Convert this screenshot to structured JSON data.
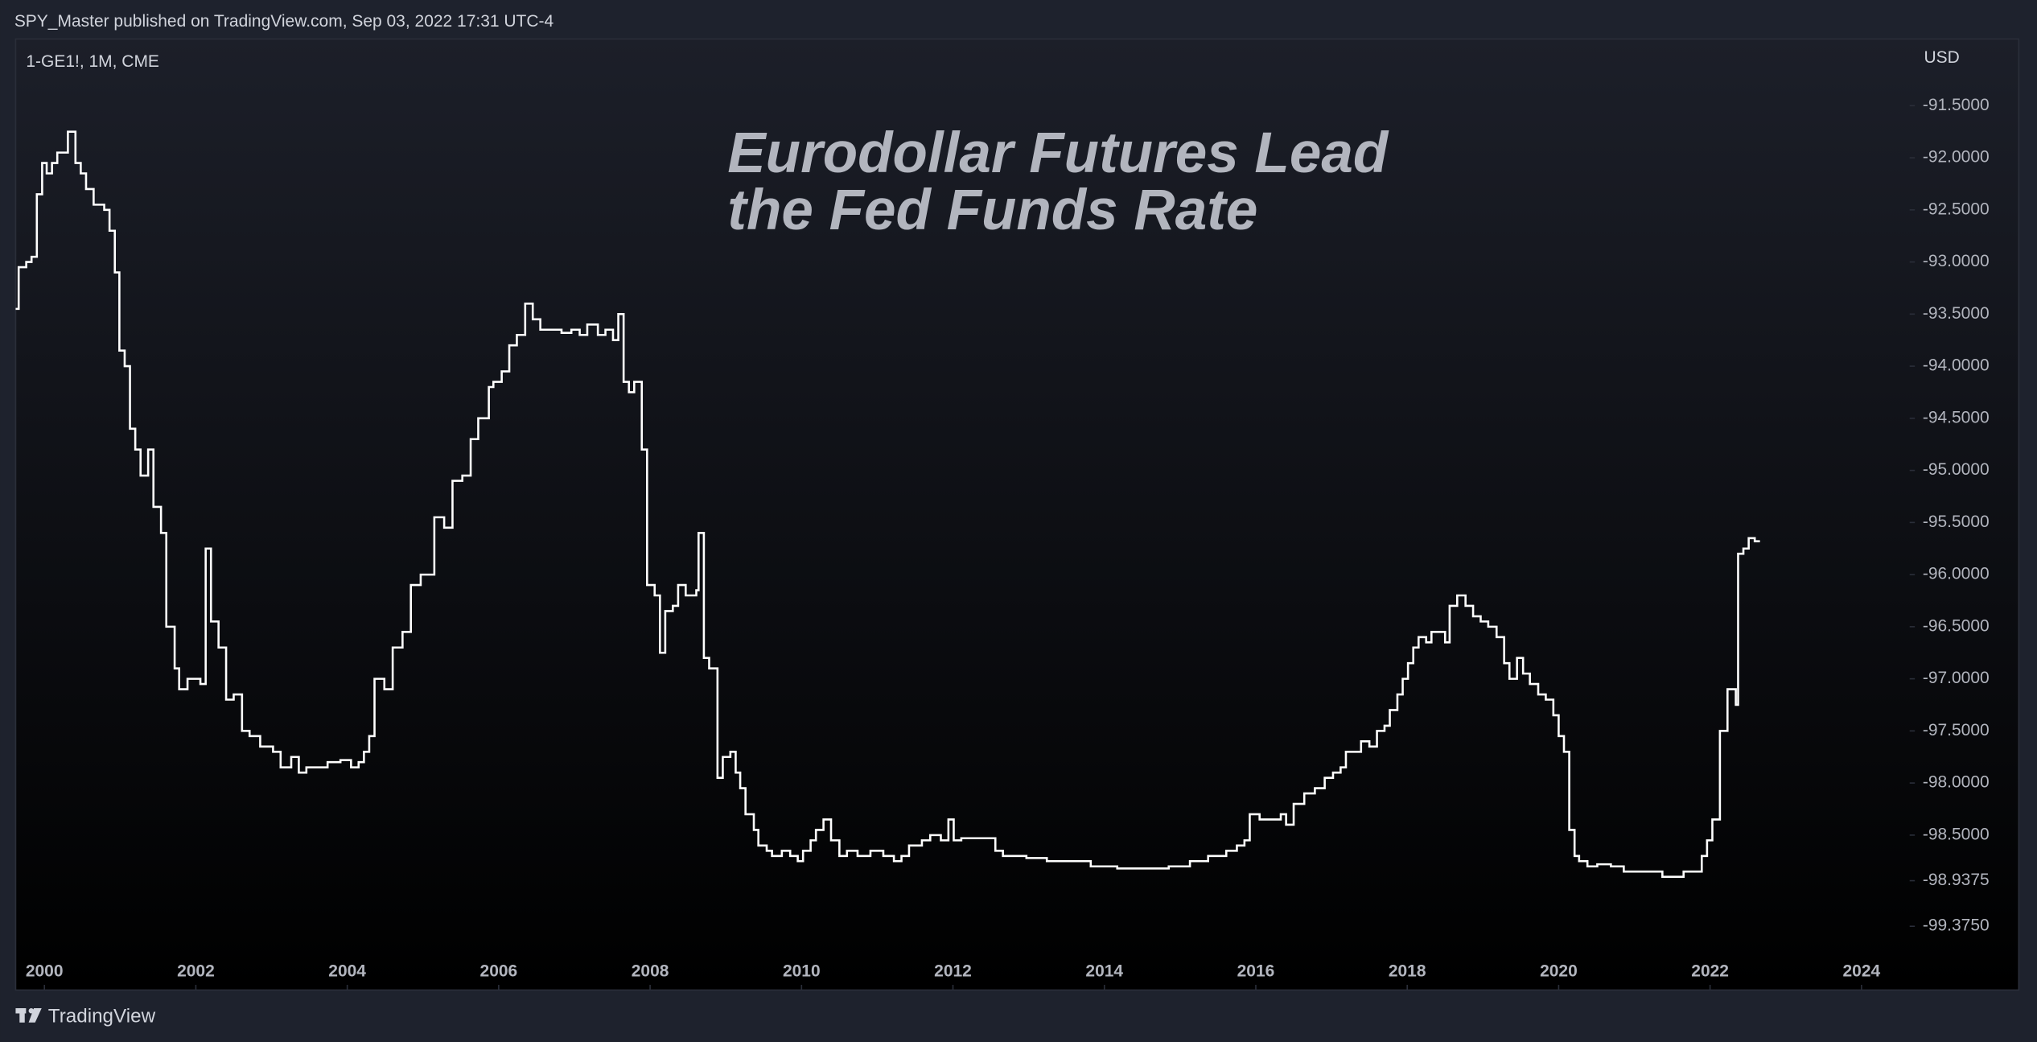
{
  "header": "SPY_Master published on TradingView.com, Sep 03, 2022 17:31 UTC-4",
  "footer": "TradingView",
  "chart_data": {
    "type": "line",
    "step": true,
    "symbol": "1-GE1!, 1M, CME",
    "currency": "USD",
    "title": [
      "Eurodollar Futures Lead",
      "the Fed Funds Rate"
    ],
    "color": "#ffffff",
    "x": [
      1999.62,
      1999.66,
      1999.76,
      1999.83,
      1999.9,
      1999.97,
      2000.03,
      2000.1,
      2000.17,
      2000.31,
      2000.41,
      2000.48,
      2000.55,
      2000.65,
      2000.79,
      2000.86,
      2000.93,
      2000.99,
      2001.06,
      2001.13,
      2001.2,
      2001.27,
      2001.37,
      2001.44,
      2001.54,
      2001.61,
      2001.72,
      2001.78,
      2001.89,
      2002.06,
      2002.13,
      2002.2,
      2002.3,
      2002.4,
      2002.5,
      2002.61,
      2002.71,
      2002.85,
      2003.02,
      2003.12,
      2003.26,
      2003.36,
      2003.46,
      2003.64,
      2003.74,
      2003.91,
      2004.05,
      2004.15,
      2004.22,
      2004.29,
      2004.36,
      2004.49,
      2004.6,
      2004.73,
      2004.84,
      2004.97,
      2005.15,
      2005.28,
      2005.39,
      2005.52,
      2005.63,
      2005.73,
      2005.87,
      2005.93,
      2006.04,
      2006.14,
      2006.24,
      2006.35,
      2006.45,
      2006.55,
      2006.69,
      2006.83,
      2006.96,
      2007.07,
      2007.17,
      2007.31,
      2007.41,
      2007.51,
      2007.58,
      2007.65,
      2007.72,
      2007.79,
      2007.89,
      2007.96,
      2008.06,
      2008.13,
      2008.2,
      2008.3,
      2008.37,
      2008.47,
      2008.61,
      2008.64,
      2008.71,
      2008.78,
      2008.89,
      2008.96,
      2009.06,
      2009.13,
      2009.19,
      2009.26,
      2009.37,
      2009.43,
      2009.54,
      2009.61,
      2009.74,
      2009.85,
      2009.95,
      2010.02,
      2010.12,
      2010.19,
      2010.29,
      2010.39,
      2010.5,
      2010.6,
      2010.74,
      2010.91,
      2011.08,
      2011.22,
      2011.32,
      2011.42,
      2011.59,
      2011.7,
      2011.84,
      2011.94,
      2012.01,
      2012.11,
      2012.45,
      2012.56,
      2012.66,
      2012.97,
      2013.24,
      2013.48,
      2013.82,
      2014.17,
      2014.51,
      2014.85,
      2015.13,
      2015.37,
      2015.61,
      2015.75,
      2015.85,
      2015.92,
      2016.05,
      2016.19,
      2016.33,
      2016.4,
      2016.5,
      2016.64,
      2016.78,
      2016.91,
      2017.02,
      2017.12,
      2017.19,
      2017.32,
      2017.39,
      2017.5,
      2017.6,
      2017.7,
      2017.77,
      2017.87,
      2017.94,
      2018.01,
      2018.08,
      2018.15,
      2018.25,
      2018.32,
      2018.42,
      2018.5,
      2018.56,
      2018.66,
      2018.77,
      2018.87,
      2018.97,
      2019.07,
      2019.18,
      2019.28,
      2019.35,
      2019.45,
      2019.53,
      2019.62,
      2019.73,
      2019.83,
      2019.93,
      2020.0,
      2020.07,
      2020.14,
      2020.21,
      2020.27,
      2020.38,
      2020.51,
      2020.69,
      2020.86,
      2021.03,
      2021.2,
      2021.37,
      2021.54,
      2021.65,
      2021.78,
      2021.89,
      2021.96,
      2022.03,
      2022.13,
      2022.23,
      2022.34,
      2022.37,
      2022.44,
      2022.51,
      2022.59
    ],
    "values": [
      -93.45,
      -93.05,
      -93.0,
      -92.95,
      -92.35,
      -92.05,
      -92.15,
      -92.05,
      -91.95,
      -91.75,
      -92.05,
      -92.15,
      -92.3,
      -92.45,
      -92.5,
      -92.7,
      -93.1,
      -93.85,
      -94.0,
      -94.6,
      -94.8,
      -95.05,
      -94.8,
      -95.35,
      -95.6,
      -96.5,
      -96.9,
      -97.1,
      -97.0,
      -97.05,
      -95.75,
      -96.45,
      -96.7,
      -97.2,
      -97.15,
      -97.5,
      -97.55,
      -97.65,
      -97.7,
      -97.85,
      -97.75,
      -97.9,
      -97.85,
      -97.85,
      -97.8,
      -97.78,
      -97.85,
      -97.8,
      -97.7,
      -97.55,
      -97.0,
      -97.1,
      -96.7,
      -96.55,
      -96.1,
      -96.0,
      -95.45,
      -95.55,
      -95.1,
      -95.05,
      -94.7,
      -94.5,
      -94.2,
      -94.15,
      -94.05,
      -93.8,
      -93.7,
      -93.4,
      -93.55,
      -93.65,
      -93.65,
      -93.68,
      -93.65,
      -93.7,
      -93.6,
      -93.7,
      -93.65,
      -93.75,
      -93.5,
      -94.15,
      -94.25,
      -94.15,
      -94.8,
      -96.1,
      -96.2,
      -96.75,
      -96.35,
      -96.3,
      -96.1,
      -96.2,
      -96.15,
      -95.6,
      -96.8,
      -96.9,
      -97.95,
      -97.75,
      -97.7,
      -97.9,
      -98.05,
      -98.3,
      -98.45,
      -98.6,
      -98.65,
      -98.7,
      -98.65,
      -98.7,
      -98.75,
      -98.65,
      -98.55,
      -98.45,
      -98.35,
      -98.55,
      -98.7,
      -98.65,
      -98.7,
      -98.65,
      -98.7,
      -98.75,
      -98.7,
      -98.6,
      -98.55,
      -98.5,
      -98.55,
      -98.35,
      -98.55,
      -98.53,
      -98.53,
      -98.65,
      -98.7,
      -98.72,
      -98.75,
      -98.75,
      -98.8,
      -98.82,
      -98.82,
      -98.8,
      -98.75,
      -98.7,
      -98.65,
      -98.6,
      -98.55,
      -98.3,
      -98.35,
      -98.35,
      -98.3,
      -98.4,
      -98.2,
      -98.1,
      -98.05,
      -97.95,
      -97.9,
      -97.85,
      -97.7,
      -97.7,
      -97.6,
      -97.65,
      -97.5,
      -97.45,
      -97.3,
      -97.15,
      -97.0,
      -96.85,
      -96.7,
      -96.6,
      -96.65,
      -96.55,
      -96.55,
      -96.65,
      -96.3,
      -96.2,
      -96.3,
      -96.4,
      -96.45,
      -96.5,
      -96.6,
      -96.85,
      -97.0,
      -96.8,
      -96.95,
      -97.05,
      -97.15,
      -97.2,
      -97.35,
      -97.55,
      -97.7,
      -98.45,
      -98.7,
      -98.75,
      -98.8,
      -98.78,
      -98.8,
      -98.85,
      -98.85,
      -98.85,
      -98.9,
      -98.9,
      -98.85,
      -98.85,
      -98.7,
      -98.55,
      -98.35,
      -97.5,
      -97.1,
      -97.25,
      -95.8,
      -95.75,
      -95.65,
      -95.68
    ],
    "xlim": [
      1999.62,
      2024.55
    ],
    "xticks": [
      2000,
      2002,
      2004,
      2006,
      2008,
      2010,
      2012,
      2014,
      2016,
      2018,
      2020,
      2022,
      2024
    ],
    "ylim": [
      -99.65,
      -90.86
    ],
    "yticks": [
      {
        "value": -91.5,
        "label": "-91.5000"
      },
      {
        "value": -92.0,
        "label": "-92.0000"
      },
      {
        "value": -92.5,
        "label": "-92.5000"
      },
      {
        "value": -93.0,
        "label": "-93.0000"
      },
      {
        "value": -93.5,
        "label": "-93.5000"
      },
      {
        "value": -94.0,
        "label": "-94.0000"
      },
      {
        "value": -94.5,
        "label": "-94.5000"
      },
      {
        "value": -95.0,
        "label": "-95.0000"
      },
      {
        "value": -95.5,
        "label": "-95.5000"
      },
      {
        "value": -96.0,
        "label": "-96.0000"
      },
      {
        "value": -96.5,
        "label": "-96.5000"
      },
      {
        "value": -97.0,
        "label": "-97.0000"
      },
      {
        "value": -97.5,
        "label": "-97.5000"
      },
      {
        "value": -98.0,
        "label": "-98.0000"
      },
      {
        "value": -98.5,
        "label": "-98.5000"
      },
      {
        "value": -98.9375,
        "label": "-98.9375"
      },
      {
        "value": -99.375,
        "label": "-99.3750"
      }
    ]
  }
}
